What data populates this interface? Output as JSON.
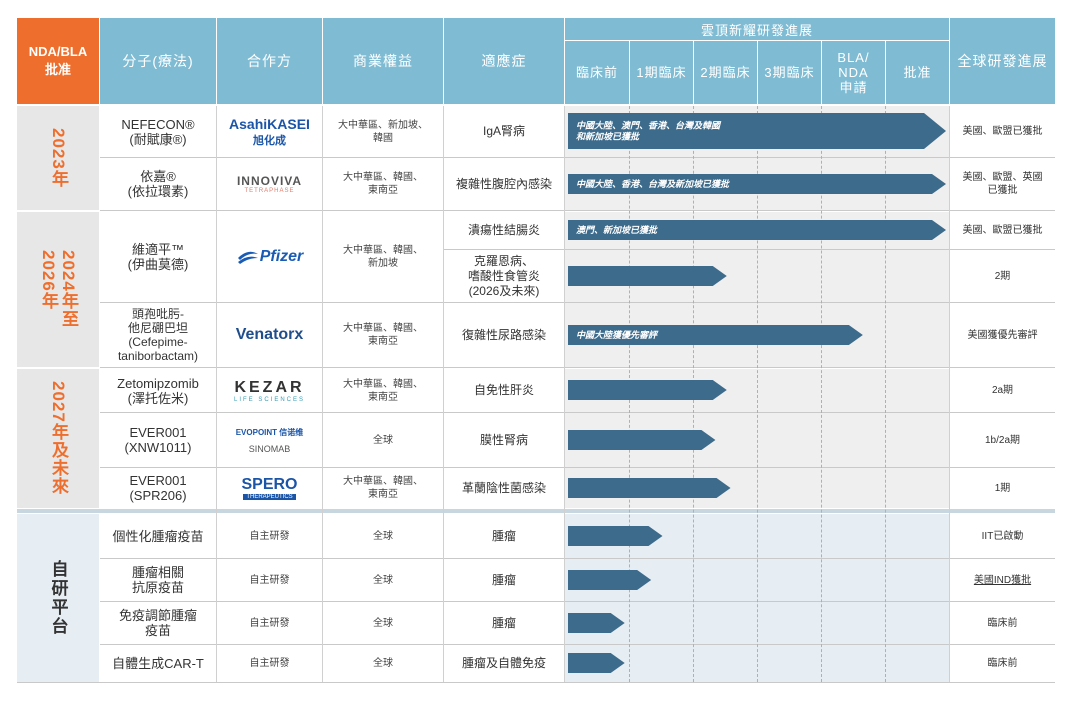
{
  "header": {
    "nda_bla": "NDA/BLA\n批准",
    "molecule": "分子(療法)",
    "partner": "合作方",
    "rights": "商業權益",
    "indication": "適應症",
    "progress_title": "雲頂新耀研發進展",
    "global": "全球研發進展",
    "stages": [
      "臨床前",
      "1期臨床",
      "2期臨床",
      "3期臨床",
      "BLA/\nNDA\n申請",
      "批准"
    ]
  },
  "groups": [
    {
      "label": "2023年"
    },
    {
      "label": "2024年至\n2026年"
    },
    {
      "label": "2027年及未來"
    },
    {
      "label": "自研平台"
    }
  ],
  "rows": [
    {
      "molecule": "NEFECON®\n(耐賦康®)",
      "partner_logo": "AsahiKASEI",
      "partner_sub": "旭化成",
      "rights": "大中華區、新加坡、\n韓國",
      "indication": "IgA腎病",
      "progress": 1.0,
      "bar_label": "中國大陸、澳門、香港、台灣及韓國\n和新加坡已獲批",
      "global": "美國、歐盟已獲批"
    },
    {
      "molecule": "依嘉®\n(依拉環素)",
      "partner_logo": "INNOVIVA",
      "partner_sub": "TETRAPHASE",
      "rights": "大中華區、韓國、\n東南亞",
      "indication": "複雜性腹腔內感染",
      "progress": 1.0,
      "bar_label": "中國大陸、香港、台灣及新加坡已獲批",
      "global": "美國、歐盟、英國\n已獲批"
    },
    {
      "molecule": "維適平™\n(伊曲莫德)",
      "partner_logo": "Pfizer",
      "rights": "大中華區、韓國、\n新加坡",
      "indication": "潰瘍性結腸炎",
      "progress": 1.0,
      "bar_label": "澳門、新加坡已獲批",
      "global": "美國、歐盟已獲批"
    },
    {
      "indication": "克羅恩病、\n嗜酸性食管炎\n(2026及未來)",
      "progress": 0.42,
      "global": "2期"
    },
    {
      "molecule": "頭孢吡肟-\n他尼硼巴坦\n(Cefepime-\ntaniborbactam)",
      "partner_logo": "Venatorx",
      "rights": "大中華區、韓國、\n東南亞",
      "indication": "復雜性尿路感染",
      "progress": 0.78,
      "bar_label": "中國大陸獲優先審評",
      "global": "美國獲優先審評"
    },
    {
      "molecule": "Zetomipzomib\n(澤托佐米)",
      "partner_logo": "KEZAR",
      "partner_sub": "LIFE SCIENCES",
      "rights": "大中華區、韓國、\n東南亞",
      "indication": "自免性肝炎",
      "progress": 0.42,
      "global": "2a期"
    },
    {
      "molecule": "EVER001\n(XNW1011)",
      "partner_logo": "EVOPOINT 信诺维",
      "partner_logo2": "SINOMAB",
      "rights": "全球",
      "indication": "膜性腎病",
      "progress": 0.39,
      "global": "1b/2a期"
    },
    {
      "molecule": "EVER001\n(SPR206)",
      "partner_logo": "SPERO",
      "partner_sub": "THERAPEUTICS",
      "rights": "大中華區、韓國、\n東南亞",
      "indication": "革蘭陰性菌感染",
      "progress": 0.43,
      "global": "1期"
    },
    {
      "molecule": "個性化腫瘤疫苗",
      "partner": "自主研發",
      "rights": "全球",
      "indication": "腫瘤",
      "progress": 0.25,
      "global": "IIT已啟動"
    },
    {
      "molecule": "腫瘤相關\n抗原疫苗",
      "partner": "自主研發",
      "rights": "全球",
      "indication": "腫瘤",
      "progress": 0.22,
      "global": "美國IND獲批"
    },
    {
      "molecule": "免疫調節腫瘤\n疫苗",
      "partner": "自主研發",
      "rights": "全球",
      "indication": "腫瘤",
      "progress": 0.15,
      "global": "臨床前"
    },
    {
      "molecule": "自體生成CAR-T",
      "partner": "自主研發",
      "rights": "全球",
      "indication": "腫瘤及自體免疫",
      "progress": 0.15,
      "global": "臨床前"
    }
  ],
  "colors": {
    "header": "#7fbcd4",
    "orange": "#ee6f2d",
    "bar": "#3d6b8c",
    "grey_bg": "#efefef",
    "blue_bg": "#e6eef4"
  }
}
